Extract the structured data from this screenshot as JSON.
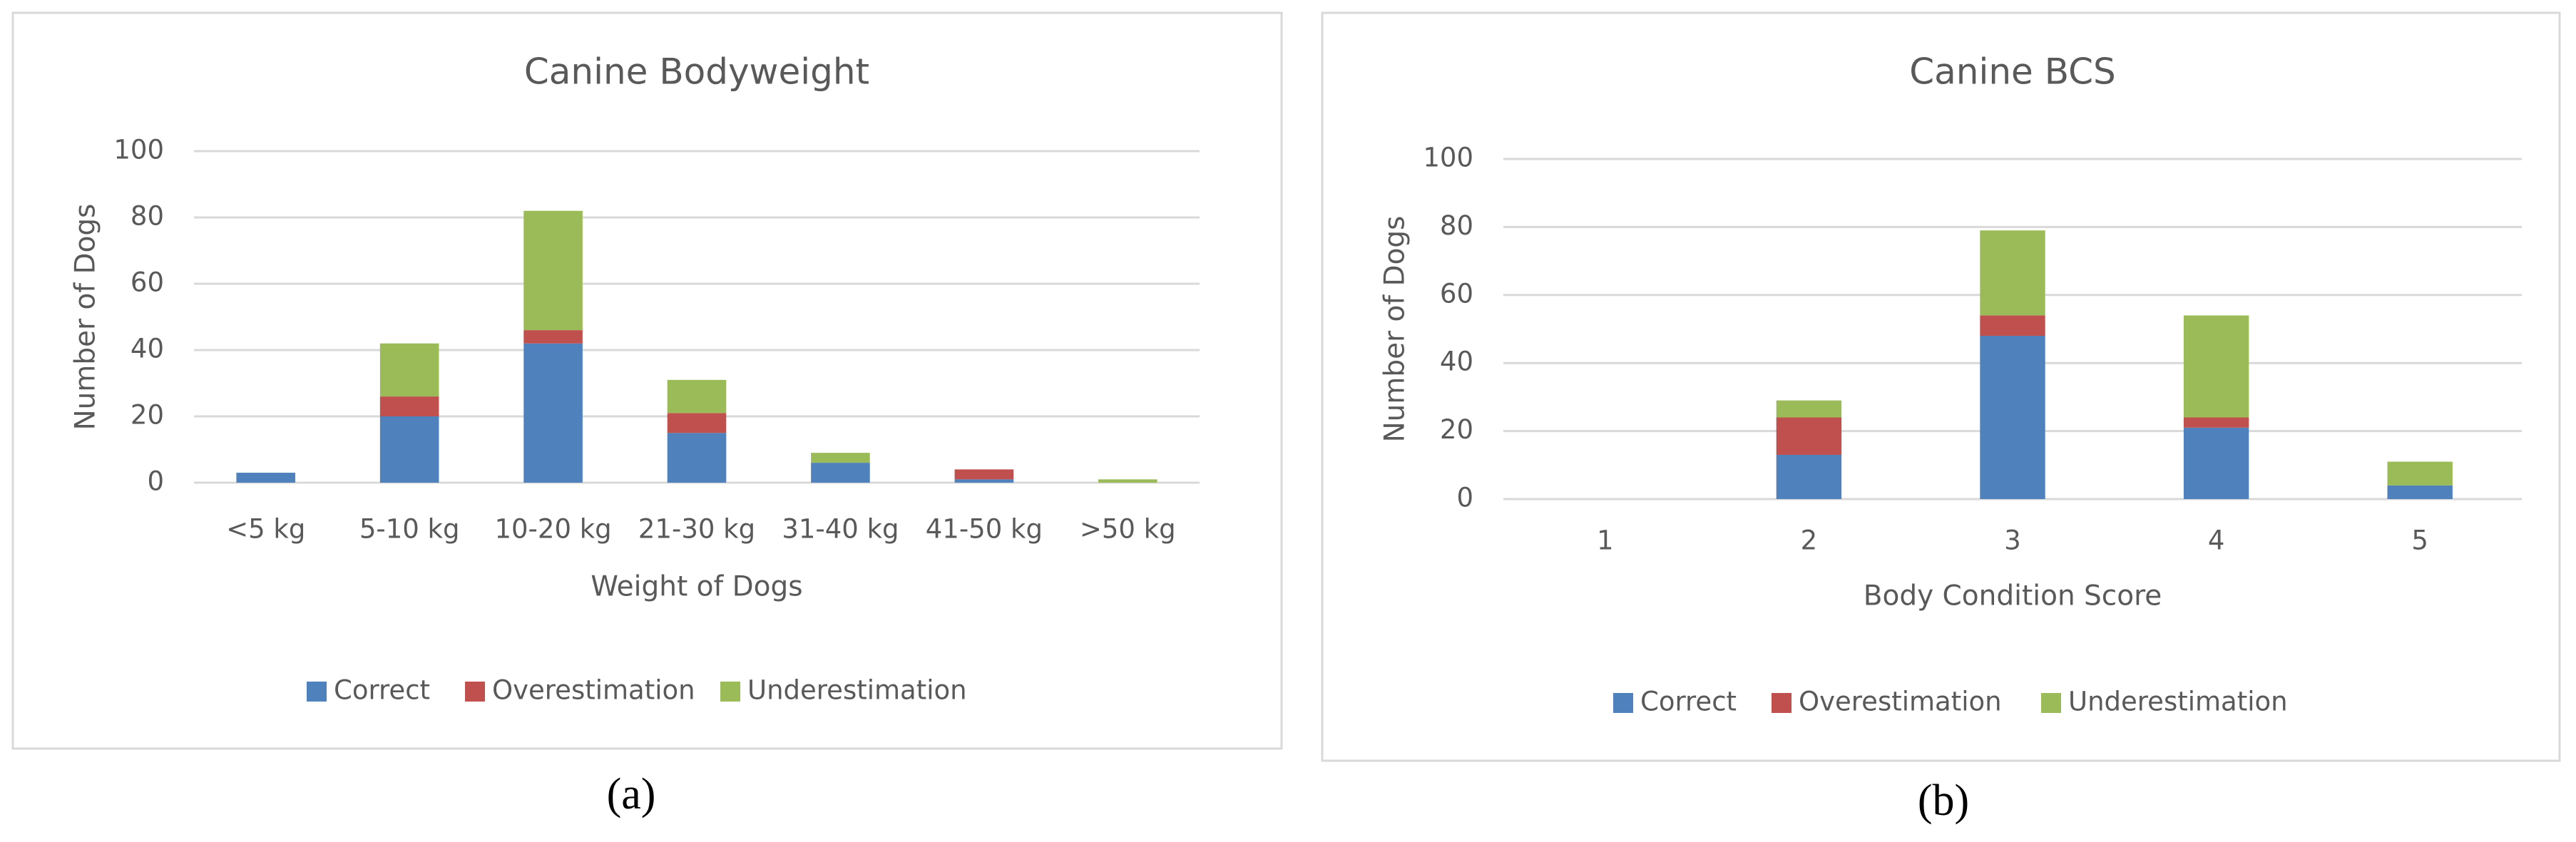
{
  "chart_data": [
    {
      "type": "bar",
      "stacked": true,
      "title": "Canine Bodyweight",
      "x_label": "Weight of Dogs",
      "y_label": "Number of Dogs",
      "categories": [
        "<5 kg",
        "5-10 kg",
        "10-20 kg",
        "21-30 kg",
        "31-40 kg",
        "41-50 kg",
        ">50 kg"
      ],
      "series": [
        {
          "name": "Correct",
          "color": "#4f81bd",
          "values": [
            3,
            20,
            42,
            15,
            6,
            1,
            0
          ]
        },
        {
          "name": "Overestimation",
          "color": "#c0504d",
          "values": [
            0,
            6,
            4,
            6,
            0,
            3,
            0
          ]
        },
        {
          "name": "Underestimation",
          "color": "#9bbb59",
          "values": [
            0,
            16,
            36,
            10,
            3,
            0,
            1
          ]
        }
      ],
      "ylim": [
        0,
        100
      ],
      "yticks": [
        0,
        20,
        40,
        60,
        80,
        100
      ],
      "grid": true,
      "legend": "bottom",
      "panel_label": "(a)"
    },
    {
      "type": "bar",
      "stacked": true,
      "title": "Canine BCS",
      "x_label": "Body Condition Score",
      "y_label": "Number of Dogs",
      "categories": [
        "1",
        "2",
        "3",
        "4",
        "5"
      ],
      "series": [
        {
          "name": "Correct",
          "color": "#4f81bd",
          "values": [
            0,
            13,
            48,
            21,
            4
          ]
        },
        {
          "name": "Overestimation",
          "color": "#c0504d",
          "values": [
            0,
            11,
            6,
            3,
            0
          ]
        },
        {
          "name": "Underestimation",
          "color": "#9bbb59",
          "values": [
            0,
            5,
            25,
            30,
            7
          ]
        }
      ],
      "ylim": [
        0,
        100
      ],
      "yticks": [
        0,
        20,
        40,
        60,
        80,
        100
      ],
      "grid": true,
      "legend": "bottom",
      "panel_label": "(b)"
    }
  ]
}
